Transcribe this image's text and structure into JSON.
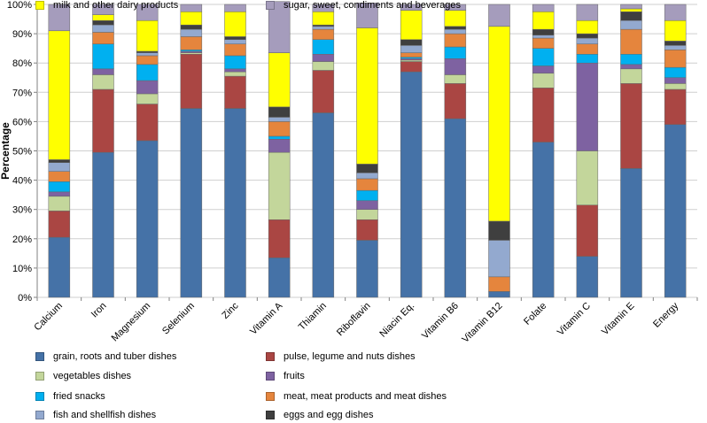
{
  "chart_data": {
    "type": "bar",
    "stacked": true,
    "ylabel": "Percentage",
    "xlabel": "",
    "ylim": [
      0,
      100
    ],
    "yticks": [
      "0%",
      "10%",
      "20%",
      "30%",
      "40%",
      "50%",
      "60%",
      "70%",
      "80%",
      "90%",
      "100%"
    ],
    "categories": [
      "Calcium",
      "Iron",
      "Magnesium",
      "Selenium",
      "Zinc",
      "Vitamin A",
      "Thiamin",
      "Riboflavin",
      "Niacin Eq.",
      "Vitamin B6",
      "Vitamin B12",
      "Folate",
      "Vitamin C",
      "Vitamin E",
      "Energy"
    ],
    "series": [
      {
        "name": "grain, roots and tuber dishes",
        "color": "#4572A7",
        "values": [
          20.5,
          49.5,
          53.5,
          64.5,
          64.5,
          13.5,
          63.0,
          19.5,
          77.0,
          61.0,
          2.0,
          53.0,
          14.0,
          44.0,
          59.0
        ]
      },
      {
        "name": "pulse, legume and nuts dishes",
        "color": "#AA4643",
        "values": [
          9.0,
          21.5,
          12.5,
          18.5,
          11.0,
          13.0,
          14.5,
          7.0,
          3.5,
          12.0,
          0.0,
          18.5,
          17.5,
          29.0,
          12.0
        ]
      },
      {
        "name": "vegetables dishes",
        "color": "#C3D69B",
        "values": [
          5.0,
          5.0,
          3.5,
          0.5,
          1.5,
          23.0,
          3.0,
          3.5,
          0.5,
          3.0,
          0.0,
          5.0,
          18.5,
          5.0,
          2.0
        ]
      },
      {
        "name": "fruits",
        "color": "#7E62A1",
        "values": [
          1.5,
          2.0,
          4.5,
          0.5,
          1.0,
          4.5,
          2.5,
          3.0,
          0.5,
          5.5,
          0.0,
          2.5,
          30.0,
          1.5,
          2.0
        ]
      },
      {
        "name": "fried snacks",
        "color": "#00B0F0",
        "values": [
          3.5,
          8.5,
          5.5,
          0.5,
          4.5,
          1.0,
          5.0,
          3.5,
          0.5,
          4.0,
          0.0,
          6.0,
          3.0,
          3.5,
          3.5
        ]
      },
      {
        "name": "meat, meat products and meat dishes",
        "color": "#E5853D",
        "values": [
          3.5,
          4.0,
          3.0,
          4.5,
          4.0,
          5.0,
          3.5,
          4.0,
          1.5,
          4.5,
          5.0,
          3.5,
          3.5,
          8.5,
          6.0
        ]
      },
      {
        "name": "fish and shellfish dishes",
        "color": "#93A9CF",
        "values": [
          3.0,
          2.5,
          1.0,
          2.5,
          1.5,
          1.5,
          1.0,
          2.0,
          2.5,
          1.5,
          12.5,
          1.0,
          2.0,
          3.0,
          1.5
        ]
      },
      {
        "name": "eggs and egg dishes",
        "color": "#3F3F3F",
        "values": [
          1.0,
          1.5,
          0.5,
          1.5,
          1.0,
          3.5,
          0.5,
          3.0,
          2.0,
          1.0,
          6.5,
          2.0,
          1.5,
          3.0,
          1.5
        ]
      },
      {
        "name": "milk and other dairy products",
        "color": "#FFFF00",
        "values": [
          44.0,
          2.0,
          10.5,
          4.5,
          8.5,
          18.5,
          4.5,
          46.5,
          10.0,
          5.5,
          66.5,
          6.0,
          4.5,
          1.0,
          7.0
        ]
      },
      {
        "name": "sugar, sweet, condiments and beverages",
        "color": "#A59CBC",
        "values": [
          9.0,
          3.5,
          5.5,
          2.5,
          2.5,
          17.5,
          2.5,
          8.5,
          2.0,
          2.0,
          7.5,
          2.5,
          5.5,
          1.5,
          5.5
        ]
      }
    ],
    "legend_position": "bottom"
  }
}
